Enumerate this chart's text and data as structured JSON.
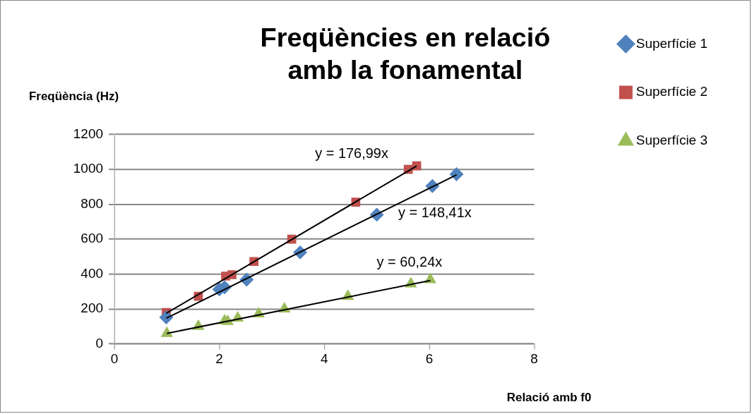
{
  "chart_data": {
    "type": "scatter",
    "title": "Freqüències en relació\namb la fonamental",
    "xlabel": "Relació amb f0",
    "ylabel": "Freqüència (Hz)",
    "xlim": [
      0,
      8
    ],
    "xticks": [
      0,
      2,
      4,
      6,
      8
    ],
    "ylim": [
      0,
      1200
    ],
    "yticks": [
      0,
      200,
      400,
      600,
      800,
      1000,
      1200
    ],
    "grid": "y",
    "legend": "right",
    "series": [
      {
        "name": "Superfície 1",
        "color": "#4f81bd",
        "marker": "diamond",
        "x": [
          0.99,
          2.0,
          2.1,
          2.52,
          3.54,
          5.0,
          6.06,
          6.52
        ],
        "values": [
          152,
          312,
          324,
          368,
          524,
          740,
          904,
          972
        ]
      },
      {
        "name": "Superfície 2",
        "color": "#c0504d",
        "marker": "square",
        "x": [
          0.99,
          1.6,
          2.12,
          2.24,
          2.66,
          3.38,
          4.6,
          5.6,
          5.76
        ],
        "values": [
          180,
          272,
          388,
          396,
          472,
          600,
          812,
          1000,
          1020
        ]
      },
      {
        "name": "Superfície 3",
        "color": "#9bbb59",
        "marker": "triangle",
        "x": [
          1.0,
          1.6,
          2.1,
          2.16,
          2.35,
          2.75,
          3.24,
          4.45,
          5.65,
          6.02
        ],
        "values": [
          60,
          100,
          132,
          128,
          148,
          172,
          200,
          272,
          344,
          368
        ]
      },
      {
        "type": "line",
        "color": "#000000",
        "x": [
          0.99,
          6.52
        ],
        "values": [
          147,
          968
        ]
      },
      {
        "type": "line",
        "color": "#000000",
        "x": [
          0.99,
          5.76
        ],
        "values": [
          175,
          1019
        ]
      },
      {
        "type": "line",
        "color": "#000000",
        "x": [
          1.0,
          6.02
        ],
        "values": [
          60,
          363
        ]
      }
    ],
    "annotations": [
      "y = 176,99x",
      "y = 148,41x",
      "y = 60,24x"
    ]
  }
}
